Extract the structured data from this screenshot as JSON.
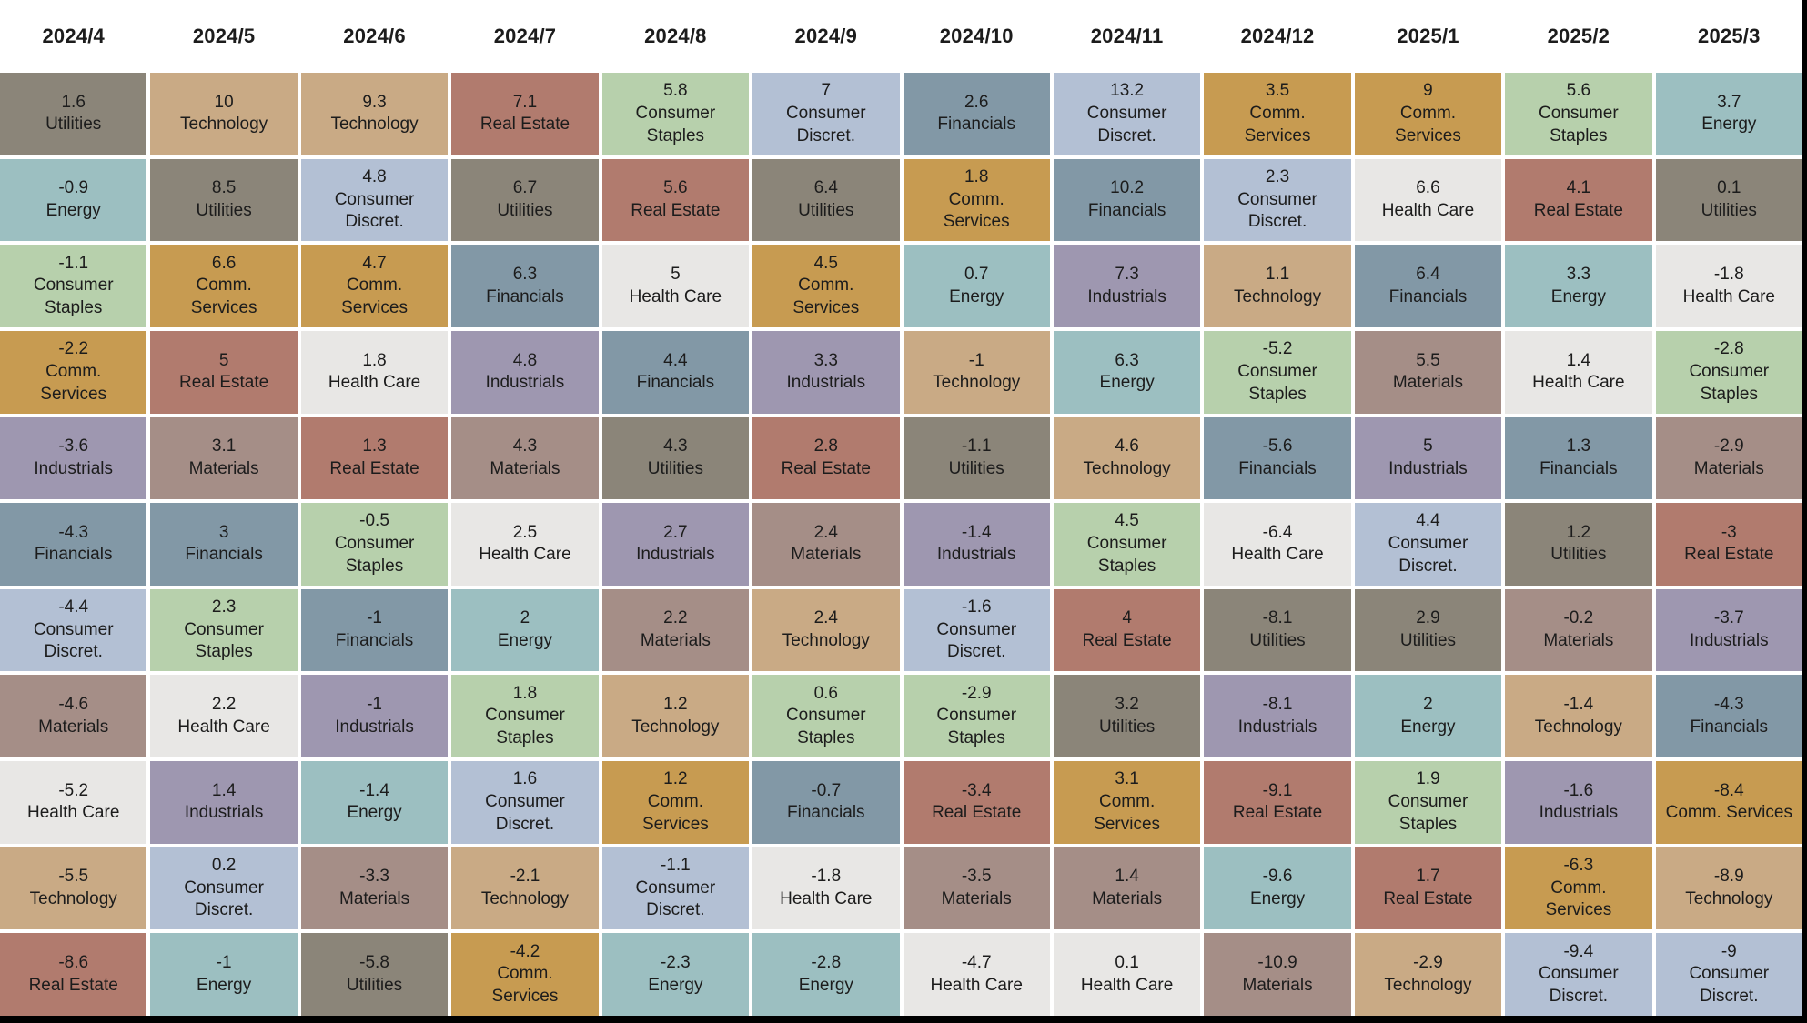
{
  "chart_data": {
    "type": "heatmap",
    "title": "",
    "xlabel": "",
    "ylabel": "",
    "legend_position": "none",
    "value_unit": "percent",
    "text_color": "#1c1c1c",
    "sheet_background": "#ffffff",
    "frame_background": "#000000",
    "sector_colors": {
      "Utilities": "#8b8579",
      "Technology": "#c9aa85",
      "Real Estate": "#b17b6e",
      "Energy": "#9cbfc1",
      "Consumer Staples": "#b7d0ac",
      "Comm. Services": "#c79b51",
      "Financials": "#8298a6",
      "Consumer Discret.": "#b3c0d4",
      "Health Care": "#e8e7e5",
      "Industrials": "#9e97b0",
      "Materials": "#a58e87"
    },
    "columns": [
      {
        "month": "2024/4",
        "cells": [
          {
            "value": "1.6",
            "sector": "Utilities",
            "label": "Utilities"
          },
          {
            "value": "-0.9",
            "sector": "Energy",
            "label": "Energy"
          },
          {
            "value": "-1.1",
            "sector": "Consumer Staples",
            "label": "Consumer\nStaples"
          },
          {
            "value": "-2.2",
            "sector": "Comm. Services",
            "label": "Comm.\nServices"
          },
          {
            "value": "-3.6",
            "sector": "Industrials",
            "label": "Industrials"
          },
          {
            "value": "-4.3",
            "sector": "Financials",
            "label": "Financials"
          },
          {
            "value": "-4.4",
            "sector": "Consumer Discret.",
            "label": "Consumer\nDiscret."
          },
          {
            "value": "-4.6",
            "sector": "Materials",
            "label": "Materials"
          },
          {
            "value": "-5.2",
            "sector": "Health Care",
            "label": "Health Care"
          },
          {
            "value": "-5.5",
            "sector": "Technology",
            "label": "Technology"
          },
          {
            "value": "-8.6",
            "sector": "Real Estate",
            "label": "Real Estate"
          }
        ]
      },
      {
        "month": "2024/5",
        "cells": [
          {
            "value": "10",
            "sector": "Technology",
            "label": "Technology"
          },
          {
            "value": "8.5",
            "sector": "Utilities",
            "label": "Utilities"
          },
          {
            "value": "6.6",
            "sector": "Comm. Services",
            "label": "Comm.\nServices"
          },
          {
            "value": "5",
            "sector": "Real Estate",
            "label": "Real Estate"
          },
          {
            "value": "3.1",
            "sector": "Materials",
            "label": "Materials"
          },
          {
            "value": "3",
            "sector": "Financials",
            "label": "Financials"
          },
          {
            "value": "2.3",
            "sector": "Consumer Staples",
            "label": "Consumer\nStaples"
          },
          {
            "value": "2.2",
            "sector": "Health Care",
            "label": "Health Care"
          },
          {
            "value": "1.4",
            "sector": "Industrials",
            "label": "Industrials"
          },
          {
            "value": "0.2",
            "sector": "Consumer Discret.",
            "label": "Consumer\nDiscret."
          },
          {
            "value": "-1",
            "sector": "Energy",
            "label": "Energy"
          }
        ]
      },
      {
        "month": "2024/6",
        "cells": [
          {
            "value": "9.3",
            "sector": "Technology",
            "label": "Technology"
          },
          {
            "value": "4.8",
            "sector": "Consumer Discret.",
            "label": "Consumer\nDiscret."
          },
          {
            "value": "4.7",
            "sector": "Comm. Services",
            "label": "Comm.\nServices"
          },
          {
            "value": "1.8",
            "sector": "Health Care",
            "label": "Health Care"
          },
          {
            "value": "1.3",
            "sector": "Real Estate",
            "label": "Real Estate"
          },
          {
            "value": "-0.5",
            "sector": "Consumer Staples",
            "label": "Consumer\nStaples"
          },
          {
            "value": "-1",
            "sector": "Financials",
            "label": "Financials"
          },
          {
            "value": "-1",
            "sector": "Industrials",
            "label": "Industrials"
          },
          {
            "value": "-1.4",
            "sector": "Energy",
            "label": "Energy"
          },
          {
            "value": "-3.3",
            "sector": "Materials",
            "label": "Materials"
          },
          {
            "value": "-5.8",
            "sector": "Utilities",
            "label": "Utilities"
          }
        ]
      },
      {
        "month": "2024/7",
        "cells": [
          {
            "value": "7.1",
            "sector": "Real Estate",
            "label": "Real Estate"
          },
          {
            "value": "6.7",
            "sector": "Utilities",
            "label": "Utilities"
          },
          {
            "value": "6.3",
            "sector": "Financials",
            "label": "Financials"
          },
          {
            "value": "4.8",
            "sector": "Industrials",
            "label": "Industrials"
          },
          {
            "value": "4.3",
            "sector": "Materials",
            "label": "Materials"
          },
          {
            "value": "2.5",
            "sector": "Health Care",
            "label": "Health Care"
          },
          {
            "value": "2",
            "sector": "Energy",
            "label": "Energy"
          },
          {
            "value": "1.8",
            "sector": "Consumer Staples",
            "label": "Consumer\nStaples"
          },
          {
            "value": "1.6",
            "sector": "Consumer Discret.",
            "label": "Consumer\nDiscret."
          },
          {
            "value": "-2.1",
            "sector": "Technology",
            "label": "Technology"
          },
          {
            "value": "-4.2",
            "sector": "Comm. Services",
            "label": "Comm.\nServices"
          }
        ]
      },
      {
        "month": "2024/8",
        "cells": [
          {
            "value": "5.8",
            "sector": "Consumer Staples",
            "label": "Consumer\nStaples"
          },
          {
            "value": "5.6",
            "sector": "Real Estate",
            "label": "Real Estate"
          },
          {
            "value": "5",
            "sector": "Health Care",
            "label": "Health Care"
          },
          {
            "value": "4.4",
            "sector": "Financials",
            "label": "Financials"
          },
          {
            "value": "4.3",
            "sector": "Utilities",
            "label": "Utilities"
          },
          {
            "value": "2.7",
            "sector": "Industrials",
            "label": "Industrials"
          },
          {
            "value": "2.2",
            "sector": "Materials",
            "label": "Materials"
          },
          {
            "value": "1.2",
            "sector": "Technology",
            "label": "Technology"
          },
          {
            "value": "1.2",
            "sector": "Comm. Services",
            "label": "Comm.\nServices"
          },
          {
            "value": "-1.1",
            "sector": "Consumer Discret.",
            "label": "Consumer\nDiscret."
          },
          {
            "value": "-2.3",
            "sector": "Energy",
            "label": "Energy"
          }
        ]
      },
      {
        "month": "2024/9",
        "cells": [
          {
            "value": "7",
            "sector": "Consumer Discret.",
            "label": "Consumer\nDiscret."
          },
          {
            "value": "6.4",
            "sector": "Utilities",
            "label": "Utilities"
          },
          {
            "value": "4.5",
            "sector": "Comm. Services",
            "label": "Comm.\nServices"
          },
          {
            "value": "3.3",
            "sector": "Industrials",
            "label": "Industrials"
          },
          {
            "value": "2.8",
            "sector": "Real Estate",
            "label": "Real Estate"
          },
          {
            "value": "2.4",
            "sector": "Materials",
            "label": "Materials"
          },
          {
            "value": "2.4",
            "sector": "Technology",
            "label": "Technology"
          },
          {
            "value": "0.6",
            "sector": "Consumer Staples",
            "label": "Consumer\nStaples"
          },
          {
            "value": "-0.7",
            "sector": "Financials",
            "label": "Financials"
          },
          {
            "value": "-1.8",
            "sector": "Health Care",
            "label": "Health Care"
          },
          {
            "value": "-2.8",
            "sector": "Energy",
            "label": "Energy"
          }
        ]
      },
      {
        "month": "2024/10",
        "cells": [
          {
            "value": "2.6",
            "sector": "Financials",
            "label": "Financials"
          },
          {
            "value": "1.8",
            "sector": "Comm. Services",
            "label": "Comm.\nServices"
          },
          {
            "value": "0.7",
            "sector": "Energy",
            "label": "Energy"
          },
          {
            "value": "-1",
            "sector": "Technology",
            "label": "Technology"
          },
          {
            "value": "-1.1",
            "sector": "Utilities",
            "label": "Utilities"
          },
          {
            "value": "-1.4",
            "sector": "Industrials",
            "label": "Industrials"
          },
          {
            "value": "-1.6",
            "sector": "Consumer Discret.",
            "label": "Consumer\nDiscret."
          },
          {
            "value": "-2.9",
            "sector": "Consumer Staples",
            "label": "Consumer\nStaples"
          },
          {
            "value": "-3.4",
            "sector": "Real Estate",
            "label": "Real Estate"
          },
          {
            "value": "-3.5",
            "sector": "Materials",
            "label": "Materials"
          },
          {
            "value": "-4.7",
            "sector": "Health Care",
            "label": "Health Care"
          }
        ]
      },
      {
        "month": "2024/11",
        "cells": [
          {
            "value": "13.2",
            "sector": "Consumer Discret.",
            "label": "Consumer\nDiscret."
          },
          {
            "value": "10.2",
            "sector": "Financials",
            "label": "Financials"
          },
          {
            "value": "7.3",
            "sector": "Industrials",
            "label": "Industrials"
          },
          {
            "value": "6.3",
            "sector": "Energy",
            "label": "Energy"
          },
          {
            "value": "4.6",
            "sector": "Technology",
            "label": "Technology"
          },
          {
            "value": "4.5",
            "sector": "Consumer Staples",
            "label": "Consumer\nStaples"
          },
          {
            "value": "4",
            "sector": "Real Estate",
            "label": "Real Estate"
          },
          {
            "value": "3.2",
            "sector": "Utilities",
            "label": "Utilities"
          },
          {
            "value": "3.1",
            "sector": "Comm. Services",
            "label": "Comm.\nServices"
          },
          {
            "value": "1.4",
            "sector": "Materials",
            "label": "Materials"
          },
          {
            "value": "0.1",
            "sector": "Health Care",
            "label": "Health Care"
          }
        ]
      },
      {
        "month": "2024/12",
        "cells": [
          {
            "value": "3.5",
            "sector": "Comm. Services",
            "label": "Comm.\nServices"
          },
          {
            "value": "2.3",
            "sector": "Consumer Discret.",
            "label": "Consumer\nDiscret."
          },
          {
            "value": "1.1",
            "sector": "Technology",
            "label": "Technology"
          },
          {
            "value": "-5.2",
            "sector": "Consumer Staples",
            "label": "Consumer\nStaples"
          },
          {
            "value": "-5.6",
            "sector": "Financials",
            "label": "Financials"
          },
          {
            "value": "-6.4",
            "sector": "Health Care",
            "label": "Health Care"
          },
          {
            "value": "-8.1",
            "sector": "Utilities",
            "label": "Utilities"
          },
          {
            "value": "-8.1",
            "sector": "Industrials",
            "label": "Industrials"
          },
          {
            "value": "-9.1",
            "sector": "Real Estate",
            "label": "Real Estate"
          },
          {
            "value": "-9.6",
            "sector": "Energy",
            "label": "Energy"
          },
          {
            "value": "-10.9",
            "sector": "Materials",
            "label": "Materials"
          }
        ]
      },
      {
        "month": "2025/1",
        "cells": [
          {
            "value": "9",
            "sector": "Comm. Services",
            "label": "Comm.\nServices"
          },
          {
            "value": "6.6",
            "sector": "Health Care",
            "label": "Health Care"
          },
          {
            "value": "6.4",
            "sector": "Financials",
            "label": "Financials"
          },
          {
            "value": "5.5",
            "sector": "Materials",
            "label": "Materials"
          },
          {
            "value": "5",
            "sector": "Industrials",
            "label": "Industrials"
          },
          {
            "value": "4.4",
            "sector": "Consumer Discret.",
            "label": "Consumer\nDiscret."
          },
          {
            "value": "2.9",
            "sector": "Utilities",
            "label": "Utilities"
          },
          {
            "value": "2",
            "sector": "Energy",
            "label": "Energy"
          },
          {
            "value": "1.9",
            "sector": "Consumer Staples",
            "label": "Consumer\nStaples"
          },
          {
            "value": "1.7",
            "sector": "Real Estate",
            "label": "Real Estate"
          },
          {
            "value": "-2.9",
            "sector": "Technology",
            "label": "Technology"
          }
        ]
      },
      {
        "month": "2025/2",
        "cells": [
          {
            "value": "5.6",
            "sector": "Consumer Staples",
            "label": "Consumer\nStaples"
          },
          {
            "value": "4.1",
            "sector": "Real Estate",
            "label": "Real Estate"
          },
          {
            "value": "3.3",
            "sector": "Energy",
            "label": "Energy"
          },
          {
            "value": "1.4",
            "sector": "Health Care",
            "label": "Health Care"
          },
          {
            "value": "1.3",
            "sector": "Financials",
            "label": "Financials"
          },
          {
            "value": "1.2",
            "sector": "Utilities",
            "label": "Utilities"
          },
          {
            "value": "-0.2",
            "sector": "Materials",
            "label": "Materials"
          },
          {
            "value": "-1.4",
            "sector": "Technology",
            "label": "Technology"
          },
          {
            "value": "-1.6",
            "sector": "Industrials",
            "label": "Industrials"
          },
          {
            "value": "-6.3",
            "sector": "Comm. Services",
            "label": "Comm.\nServices"
          },
          {
            "value": "-9.4",
            "sector": "Consumer Discret.",
            "label": "Consumer\nDiscret."
          }
        ]
      },
      {
        "month": "2025/3",
        "cells": [
          {
            "value": "3.7",
            "sector": "Energy",
            "label": "Energy"
          },
          {
            "value": "0.1",
            "sector": "Utilities",
            "label": "Utilities"
          },
          {
            "value": "-1.8",
            "sector": "Health Care",
            "label": "Health Care"
          },
          {
            "value": "-2.8",
            "sector": "Consumer Staples",
            "label": "Consumer\nStaples"
          },
          {
            "value": "-2.9",
            "sector": "Materials",
            "label": "Materials"
          },
          {
            "value": "-3",
            "sector": "Real Estate",
            "label": "Real Estate"
          },
          {
            "value": "-3.7",
            "sector": "Industrials",
            "label": "Industrials"
          },
          {
            "value": "-4.3",
            "sector": "Financials",
            "label": "Financials"
          },
          {
            "value": "-8.4",
            "sector": "Comm. Services",
            "label": "Comm. Services"
          },
          {
            "value": "-8.9",
            "sector": "Technology",
            "label": "Technology"
          },
          {
            "value": "-9",
            "sector": "Consumer Discret.",
            "label": "Consumer\nDiscret."
          }
        ]
      }
    ]
  }
}
